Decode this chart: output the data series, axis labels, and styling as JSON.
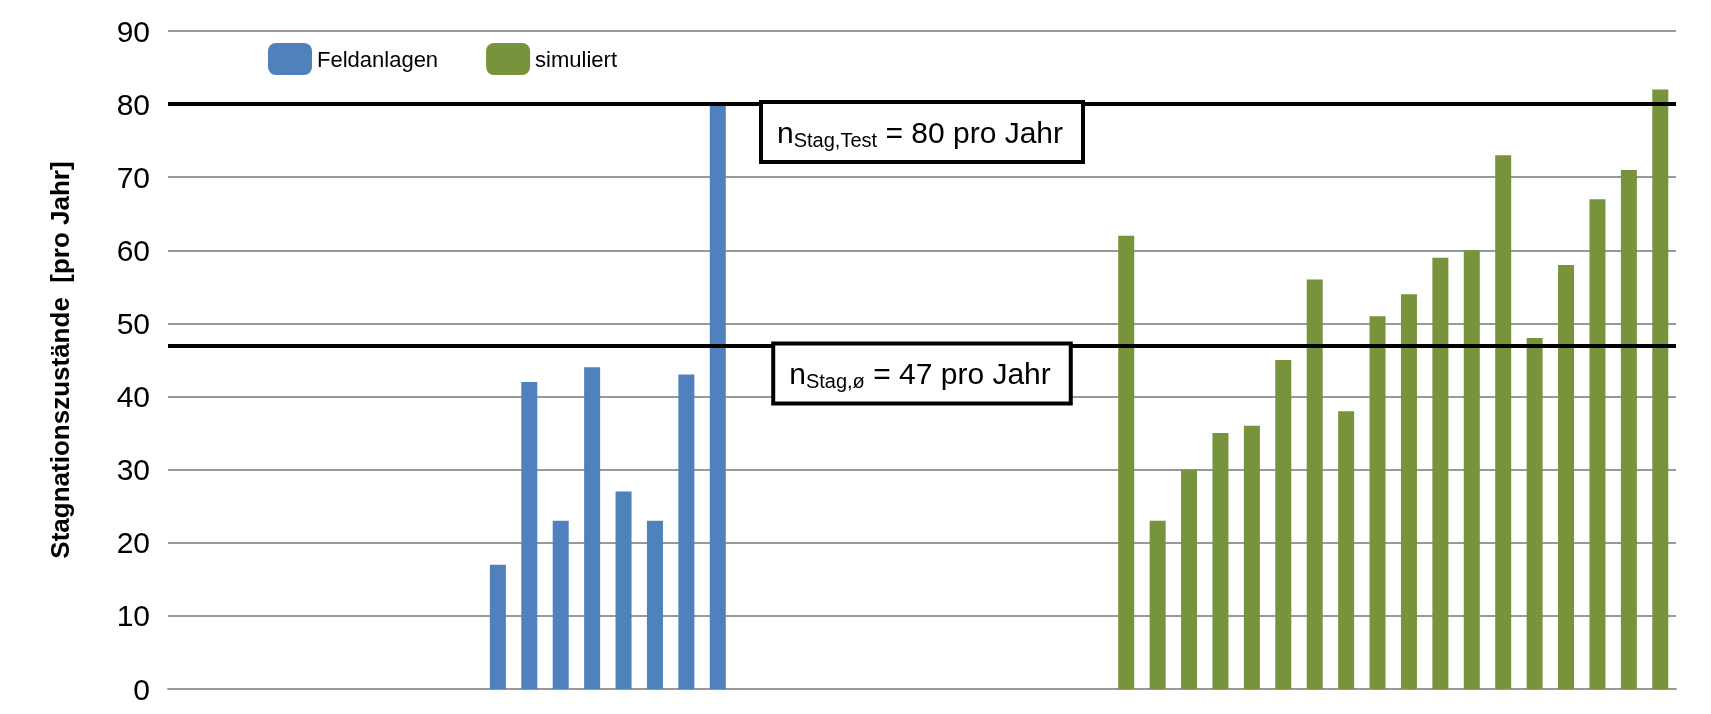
{
  "chart_data": {
    "type": "bar",
    "ylabel": "Stagnationszustände  [pro Jahr]",
    "categories": [
      null,
      null,
      null,
      null,
      null,
      null,
      null,
      null,
      null,
      null,
      null,
      null,
      null,
      null,
      null,
      null,
      null,
      null,
      null,
      null,
      null,
      null,
      null,
      null,
      null,
      null,
      null,
      null,
      null,
      null,
      null,
      null,
      null,
      null,
      null,
      null,
      null,
      null,
      null,
      null,
      null,
      null,
      null,
      null,
      null,
      null,
      null,
      null
    ],
    "series": [
      {
        "name": "Feldanlagen",
        "color": "#4f81bd",
        "values": [
          null,
          null,
          null,
          null,
          null,
          null,
          null,
          null,
          null,
          null,
          17,
          42,
          23,
          44,
          27,
          23,
          43,
          80,
          null,
          null,
          null,
          null,
          null,
          null,
          null,
          null,
          null,
          null,
          null,
          null,
          null,
          null,
          null,
          null,
          null,
          null,
          null,
          null,
          null,
          null,
          null,
          null,
          null,
          null,
          null,
          null,
          null,
          null
        ]
      },
      {
        "name": "simuliert",
        "color": "#77933c",
        "values": [
          null,
          null,
          null,
          null,
          null,
          null,
          null,
          null,
          null,
          null,
          null,
          null,
          null,
          null,
          null,
          null,
          null,
          null,
          null,
          null,
          null,
          null,
          null,
          null,
          null,
          null,
          null,
          null,
          null,
          null,
          62,
          23,
          30,
          35,
          36,
          45,
          56,
          38,
          51,
          54,
          59,
          60,
          73,
          48,
          58,
          67,
          71,
          82
        ]
      }
    ],
    "ylim": [
      0,
      90
    ],
    "yticks": [
      0,
      10,
      20,
      30,
      40,
      50,
      60,
      70,
      80,
      90
    ],
    "grid": "y",
    "legend": "top left",
    "tick_labels": "y",
    "ref_lines": [
      {
        "axis": "y",
        "value": 80,
        "label": "n$_{Stag,Test}$ = 80 pro Jahr",
        "color": "#000000"
      },
      {
        "axis": "y",
        "value": 47,
        "label": "n$_{Stag,ø}$ = 47 pro Jahr",
        "color": "#000000"
      }
    ]
  }
}
